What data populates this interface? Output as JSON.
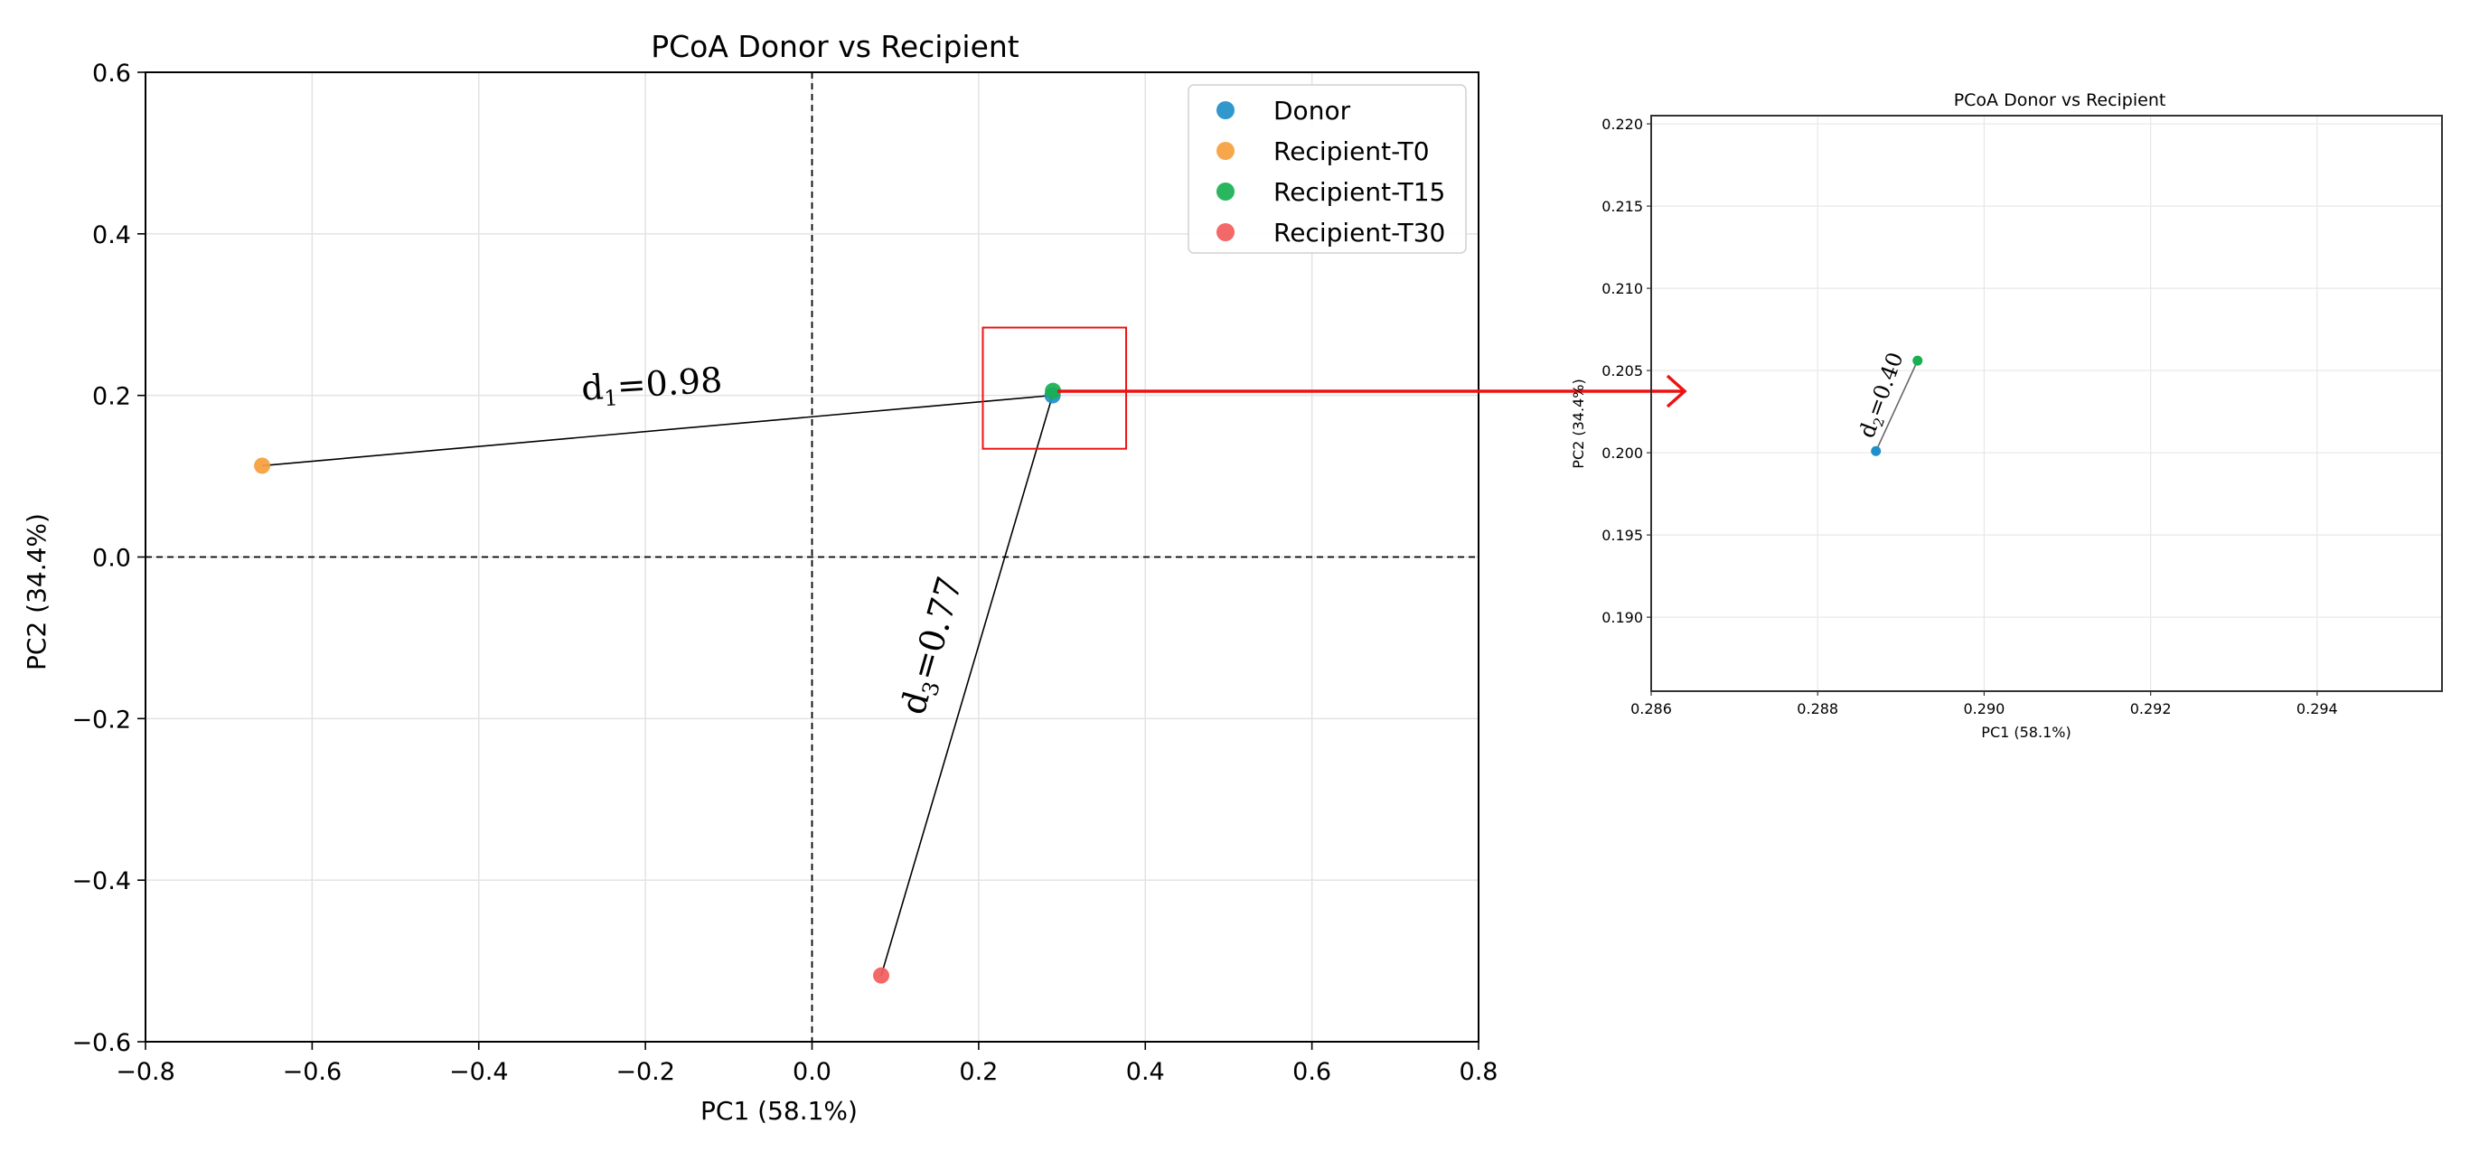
{
  "chart_data": [
    {
      "type": "scatter",
      "title": "PCoA  Donor vs Recipient",
      "xlabel": "PC1 (58.1%)",
      "ylabel": "PC2 (34.4%)",
      "xlim": [
        -0.8,
        0.8
      ],
      "ylim": [
        -0.6,
        0.6
      ],
      "xticks": [
        -0.8,
        -0.6,
        -0.4,
        -0.2,
        0.0,
        0.2,
        0.4,
        0.6,
        0.8
      ],
      "yticks": [
        -0.6,
        -0.4,
        -0.2,
        0.0,
        0.2,
        0.4,
        0.6
      ],
      "xtick_labels": [
        "−0.8",
        "−0.6",
        "−0.4",
        "−0.2",
        "0.0",
        "0.2",
        "0.4",
        "0.6",
        "0.8"
      ],
      "ytick_labels": [
        "−0.6",
        "−0.4",
        "−0.2",
        "0.0",
        "0.2",
        "0.4",
        "0.6"
      ],
      "grid": true,
      "legend_position": "top-right",
      "series": [
        {
          "name": "Donor",
          "color": "#1f8fc9",
          "x": [
            0.2887
          ],
          "y": [
            0.2001
          ]
        },
        {
          "name": "Recipient-T0",
          "color": "#f5a03c",
          "x": [
            -0.66
          ],
          "y": [
            0.113
          ]
        },
        {
          "name": "Recipient-T15",
          "color": "#18b050",
          "x": [
            0.2892
          ],
          "y": [
            0.2056
          ]
        },
        {
          "name": "Recipient-T30",
          "color": "#f25c5c",
          "x": [
            0.083
          ],
          "y": [
            -0.518
          ]
        }
      ],
      "annotations": [
        {
          "label_main": "d",
          "sub": "1",
          "value": "=0.98",
          "from": [
            -0.66,
            0.113
          ],
          "to": [
            0.2887,
            0.2001
          ]
        },
        {
          "label_main": "d",
          "sub": "3",
          "value": "=0.77",
          "from": [
            0.083,
            -0.518
          ],
          "to": [
            0.2887,
            0.2001
          ]
        }
      ],
      "zoom_box": {
        "x": [
          0.205,
          0.377
        ],
        "y": [
          0.134,
          0.284
        ]
      }
    },
    {
      "type": "scatter",
      "title": "PCoA  Donor vs Recipient",
      "xlabel": "PC1 (58.1%)",
      "ylabel": "PC2 (34.4%)",
      "xlim": [
        0.286,
        0.2955
      ],
      "ylim": [
        0.1855,
        0.2205
      ],
      "xticks": [
        0.286,
        0.288,
        0.29,
        0.292,
        0.294
      ],
      "yticks": [
        0.19,
        0.195,
        0.2,
        0.205,
        0.21,
        0.215,
        0.22
      ],
      "xtick_labels": [
        "0.286",
        "0.288",
        "0.290",
        "0.292",
        "0.294"
      ],
      "ytick_labels": [
        "0.190",
        "0.195",
        "0.200",
        "0.205",
        "0.210",
        "0.215",
        "0.220"
      ],
      "grid": true,
      "series": [
        {
          "name": "Donor",
          "color": "#1f8fc9",
          "x": [
            0.2887
          ],
          "y": [
            0.2001
          ]
        },
        {
          "name": "Recipient-T15",
          "color": "#18b050",
          "x": [
            0.2892
          ],
          "y": [
            0.2056
          ]
        }
      ],
      "annotations": [
        {
          "label_main": "d",
          "sub": "2",
          "value": "=0.40",
          "from": [
            0.2887,
            0.2001
          ],
          "to": [
            0.2892,
            0.2056
          ]
        }
      ]
    }
  ]
}
